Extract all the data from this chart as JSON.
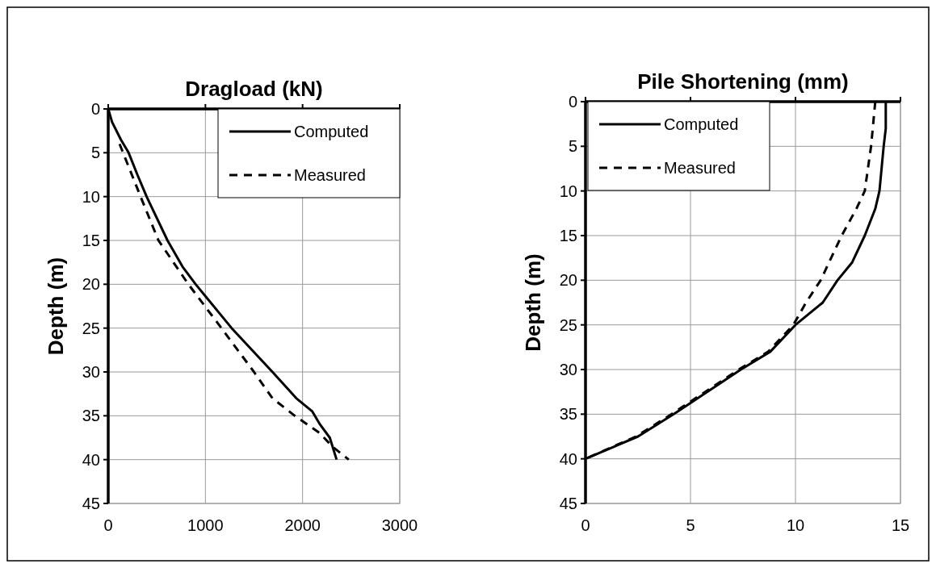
{
  "chart_data": [
    {
      "type": "line",
      "title": "Dragload (kN)",
      "ylabel": "Depth (m)",
      "xlim": [
        0,
        3000
      ],
      "xticks": [
        0,
        1000,
        2000,
        3000
      ],
      "ylim": [
        45,
        0
      ],
      "yticks": [
        0,
        5,
        10,
        15,
        20,
        25,
        30,
        35,
        40,
        45
      ],
      "grid": true,
      "legend": "top right",
      "marker": "none",
      "series": [
        {
          "name": "Computed",
          "color": "#000000",
          "line_style": "solid",
          "x": [
            0,
            40,
            130,
            210,
            300,
            395,
            610,
            765,
            900,
            1270,
            1690,
            1935,
            2100,
            2180,
            2280,
            2350
          ],
          "values": [
            0,
            1.5,
            3.5,
            5,
            7.5,
            10,
            15,
            18,
            20,
            25,
            30,
            33,
            34.5,
            36,
            37.5,
            40
          ]
        },
        {
          "name": "Measured",
          "color": "#000000",
          "line_style": "dashed",
          "x": [
            117,
            225,
            333,
            517,
            825,
            1165,
            1500,
            1690,
            1920,
            2180,
            2305,
            2475
          ],
          "values": [
            4,
            7,
            10,
            15,
            20,
            25,
            30,
            33,
            35,
            37,
            38.5,
            40
          ]
        }
      ]
    },
    {
      "type": "line",
      "title": "Pile Shortening (mm)",
      "ylabel": "Depth (m)",
      "xlim": [
        0,
        15
      ],
      "xticks": [
        0,
        5,
        10,
        15
      ],
      "ylim": [
        45,
        0
      ],
      "yticks": [
        0,
        5,
        10,
        15,
        20,
        25,
        30,
        35,
        40,
        45
      ],
      "grid": true,
      "legend": "top left",
      "marker": "none",
      "series": [
        {
          "name": "Computed",
          "color": "#000000",
          "line_style": "solid",
          "x": [
            14.3,
            14.3,
            14.2,
            14.0,
            13.8,
            13.3,
            12.7,
            12.0,
            11.3,
            10.0,
            8.8,
            7.4,
            4.2,
            2.5,
            0
          ],
          "values": [
            0,
            3,
            5,
            10,
            12,
            15,
            18,
            20,
            22.5,
            25,
            28,
            30,
            35,
            37.5,
            40
          ]
        },
        {
          "name": "Measured",
          "color": "#000000",
          "line_style": "dashed",
          "x": [
            13.8,
            13.6,
            13.3,
            12.9,
            12.2,
            11.6,
            11.2,
            10.5,
            9.9,
            8.7,
            7.3,
            4.1,
            2.4,
            0
          ],
          "values": [
            0,
            5,
            10,
            12,
            15,
            18,
            20,
            22.5,
            25,
            28,
            30,
            35,
            37.5,
            40
          ]
        }
      ]
    }
  ]
}
